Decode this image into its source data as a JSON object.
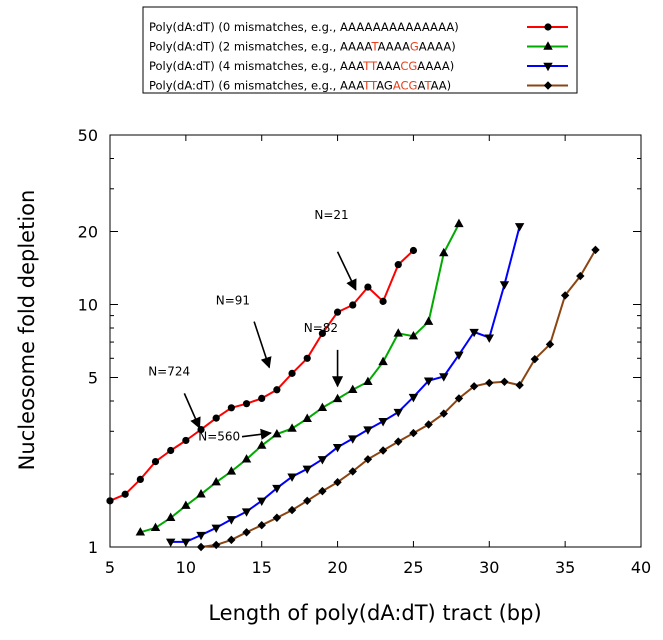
{
  "chart_data": {
    "type": "line",
    "title": "",
    "xlabel": "Length of poly(dA:dT) tract (bp)",
    "ylabel": "Nucleosome fold depletion",
    "xlim": [
      5,
      40
    ],
    "ylim": [
      1,
      50
    ],
    "y_scale": "log",
    "x_ticks": [
      "5",
      "10",
      "15",
      "20",
      "25",
      "30",
      "35",
      "40"
    ],
    "y_ticks": [
      {
        "value": 1,
        "label": "1"
      },
      {
        "value": 5,
        "label": "5"
      },
      {
        "value": 10,
        "label": "10"
      },
      {
        "value": 20,
        "label": "20"
      },
      {
        "value": 50,
        "label": "50"
      }
    ],
    "grid": false,
    "legend_position": "top",
    "series": [
      {
        "name": "Poly(dA:dT) (0 mismatches, e.g., AAAAAAAAAAAAAA)",
        "legend_parts": [
          {
            "text": "Poly(dA:dT) (0 mismatches, e.g., AAAAAAAAAAAAAA)",
            "hl": false
          }
        ],
        "color": "#ff0000",
        "marker": "circle",
        "x": [
          5,
          6,
          7,
          8,
          9,
          10,
          11,
          12,
          13,
          14,
          15,
          16,
          17,
          18,
          19,
          20,
          21,
          22,
          23,
          24,
          25
        ],
        "y": [
          1.55,
          1.65,
          1.9,
          2.25,
          2.5,
          2.75,
          3.05,
          3.4,
          3.75,
          3.9,
          4.1,
          4.45,
          5.2,
          6.0,
          7.6,
          9.3,
          9.95,
          11.8,
          10.3,
          14.6,
          16.7
        ]
      },
      {
        "name": "Poly(dA:dT) (2 mismatches, e.g., AAAATAAAAGAAAA)",
        "legend_parts": [
          {
            "text": "Poly(dA:dT) (2 mismatches, e.g., AAAA",
            "hl": false
          },
          {
            "text": "T",
            "hl": true
          },
          {
            "text": "AAAA",
            "hl": false
          },
          {
            "text": "G",
            "hl": true
          },
          {
            "text": "AAAA)",
            "hl": false
          }
        ],
        "color": "#00aa00",
        "marker": "triangle-up",
        "x": [
          7,
          8,
          9,
          10,
          11,
          12,
          13,
          14,
          15,
          16,
          17,
          18,
          19,
          20,
          21,
          22,
          23,
          24,
          25,
          26,
          27,
          28
        ],
        "y": [
          1.15,
          1.2,
          1.32,
          1.48,
          1.65,
          1.85,
          2.05,
          2.3,
          2.62,
          2.92,
          3.08,
          3.38,
          3.75,
          4.08,
          4.45,
          4.8,
          5.8,
          7.6,
          7.4,
          8.5,
          16.3,
          21.5
        ]
      },
      {
        "name": "Poly(dA:dT) (4 mismatches, e.g., AAATTAAACGAAAA)",
        "legend_parts": [
          {
            "text": "Poly(dA:dT) (4 mismatches, e.g., AAA",
            "hl": false
          },
          {
            "text": "TT",
            "hl": true
          },
          {
            "text": "AAA",
            "hl": false
          },
          {
            "text": "CG",
            "hl": true
          },
          {
            "text": "AAAA)",
            "hl": false
          }
        ],
        "color": "#0000ff",
        "marker": "triangle-down",
        "x": [
          9,
          10,
          11,
          12,
          13,
          14,
          15,
          16,
          17,
          18,
          19,
          20,
          21,
          22,
          23,
          24,
          25,
          26,
          27,
          28,
          29,
          30,
          31,
          32
        ],
        "y": [
          1.05,
          1.05,
          1.12,
          1.2,
          1.3,
          1.4,
          1.55,
          1.75,
          1.95,
          2.1,
          2.3,
          2.58,
          2.8,
          3.05,
          3.3,
          3.6,
          4.15,
          4.85,
          5.05,
          6.2,
          7.7,
          7.3,
          12.1,
          21.0
        ]
      },
      {
        "name": "Poly(dA:dT) (6 mismatches, e.g., AAATTAGACGATAA)",
        "legend_parts": [
          {
            "text": "Poly(dA:dT) (6 mismatches, e.g., AAA",
            "hl": false
          },
          {
            "text": "TT",
            "hl": true
          },
          {
            "text": "AG",
            "hl": false
          },
          {
            "text": "A",
            "hl": true
          },
          {
            "text": "CG",
            "hl": true
          },
          {
            "text": "A",
            "hl": false
          },
          {
            "text": "T",
            "hl": true
          },
          {
            "text": "AA)",
            "hl": false
          }
        ],
        "color": "#8b4513",
        "marker": "diamond",
        "x": [
          11,
          12,
          13,
          14,
          15,
          16,
          17,
          18,
          19,
          20,
          21,
          22,
          23,
          24,
          25,
          26,
          27,
          28,
          29,
          30,
          31,
          32,
          33,
          34,
          35,
          36,
          37
        ],
        "y": [
          1.0,
          1.02,
          1.07,
          1.15,
          1.23,
          1.32,
          1.42,
          1.55,
          1.7,
          1.85,
          2.05,
          2.3,
          2.5,
          2.72,
          2.95,
          3.2,
          3.55,
          4.1,
          4.6,
          4.75,
          4.8,
          4.65,
          5.95,
          6.85,
          10.9,
          13.1,
          16.8
        ]
      }
    ],
    "annotations": [
      {
        "text": "N=21",
        "x": 19.6,
        "y": 22.5,
        "arrow_from": [
          20,
          16.5
        ],
        "arrow_to": [
          21.2,
          11.5
        ]
      },
      {
        "text": "N=91",
        "x": 13.1,
        "y": 10.0,
        "arrow_from": [
          14.5,
          8.5
        ],
        "arrow_to": [
          15.5,
          5.5
        ]
      },
      {
        "text": "N=82",
        "x": 18.9,
        "y": 7.7,
        "arrow_from": [
          20,
          6.5
        ],
        "arrow_to": [
          20,
          4.6
        ]
      },
      {
        "text": "N=724",
        "x": 8.9,
        "y": 5.1,
        "arrow_from": [
          9.9,
          4.3
        ],
        "arrow_to": [
          10.9,
          3.1
        ]
      },
      {
        "text": "N=560",
        "x": 12.2,
        "y": 2.75,
        "arrow_from": [
          13.7,
          2.85
        ],
        "arrow_to": [
          15.6,
          2.95
        ]
      }
    ]
  }
}
